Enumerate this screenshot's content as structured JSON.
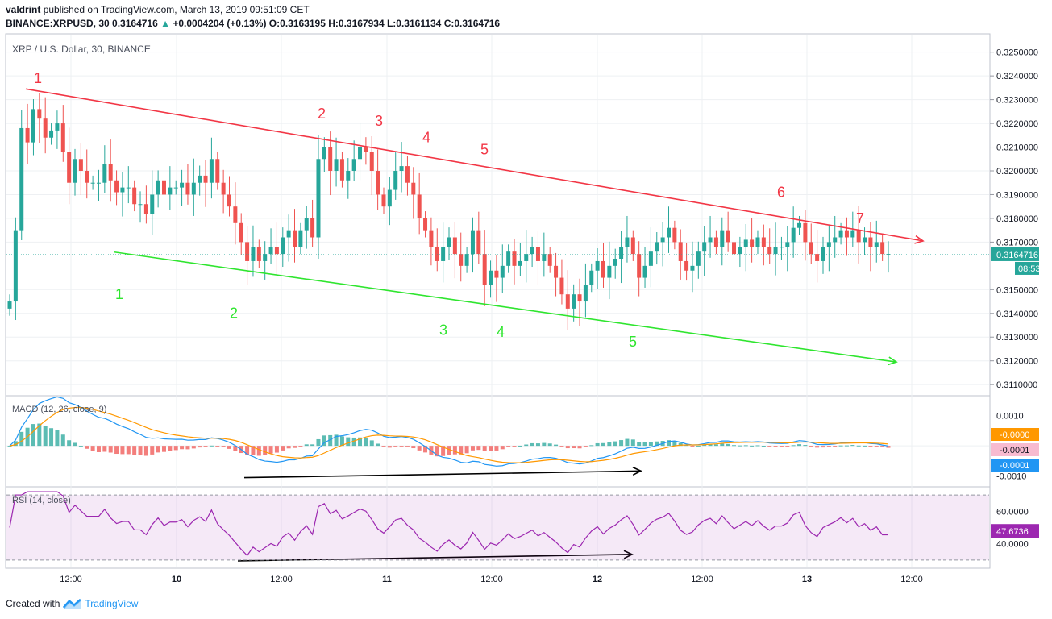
{
  "header": {
    "publisher": "valdrint",
    "published_text": "published on TradingView.com, March 13, 2019 09:51:09 CET",
    "symbol": "BINANCE:XRPUSD, 30",
    "last": "0.3164716",
    "change": "+0.0004204 (+0.13%)",
    "o_label": "O:",
    "o": "0.3163195",
    "h_label": "H:",
    "h": "0.3167934",
    "l_label": "L:",
    "l": "0.3161134",
    "c_label": "C:",
    "c": "0.3164716"
  },
  "footer": {
    "created_with": "Created with",
    "brand": "TradingView"
  },
  "colors": {
    "up": "#26a69a",
    "down": "#ef5350",
    "resistance": "#f23645",
    "support": "#2fe52f",
    "macd": "#2196f3",
    "signal": "#ff9800",
    "rsi": "#9c27b0"
  },
  "chart_data": {
    "type": "candlestick",
    "title": "XRP / U.S. Dollar, 30, BINANCE",
    "price_axis": {
      "ticks": [
        "0.3250000",
        "0.3240000",
        "0.3230000",
        "0.3220000",
        "0.3210000",
        "0.3200000",
        "0.3190000",
        "0.3180000",
        "0.3170000",
        "0.3150000",
        "0.3140000",
        "0.3130000",
        "0.3120000",
        "0.3110000"
      ],
      "last_price_label": "0.3164716",
      "countdown_label": "08:53",
      "ylim": [
        0.3107,
        0.3256
      ]
    },
    "time_axis": {
      "ticks": [
        "12:00",
        "10",
        "12:00",
        "11",
        "12:00",
        "12",
        "12:00",
        "13",
        "12:00"
      ]
    },
    "close_series": [
      0.3145,
      0.3175,
      0.3218,
      0.3212,
      0.3226,
      0.3222,
      0.3214,
      0.3217,
      0.322,
      0.3208,
      0.3195,
      0.3205,
      0.32,
      0.3195,
      0.3195,
      0.3195,
      0.3203,
      0.3196,
      0.3191,
      0.3193,
      0.3193,
      0.3186,
      0.3186,
      0.3182,
      0.319,
      0.3196,
      0.319,
      0.3193,
      0.3193,
      0.3195,
      0.319,
      0.3195,
      0.3198,
      0.3195,
      0.3205,
      0.3195,
      0.319,
      0.3185,
      0.3178,
      0.317,
      0.3162,
      0.3168,
      0.3162,
      0.3165,
      0.3168,
      0.3165,
      0.3172,
      0.3175,
      0.3168,
      0.3175,
      0.318,
      0.3172,
      0.3205,
      0.321,
      0.32,
      0.3205,
      0.3196,
      0.32,
      0.3205,
      0.321,
      0.3208,
      0.32,
      0.319,
      0.3185,
      0.3192,
      0.32,
      0.3202,
      0.3195,
      0.319,
      0.318,
      0.3175,
      0.3168,
      0.3162,
      0.3168,
      0.3172,
      0.3165,
      0.316,
      0.3165,
      0.3175,
      0.3165,
      0.3152,
      0.3158,
      0.3155,
      0.316,
      0.3166,
      0.316,
      0.3162,
      0.3165,
      0.3168,
      0.3162,
      0.3165,
      0.316,
      0.3155,
      0.3148,
      0.3142,
      0.3148,
      0.3145,
      0.3152,
      0.3158,
      0.3162,
      0.3155,
      0.316,
      0.3163,
      0.3168,
      0.3172,
      0.3165,
      0.3155,
      0.316,
      0.3166,
      0.317,
      0.3172,
      0.3176,
      0.317,
      0.3162,
      0.3158,
      0.316,
      0.3166,
      0.317,
      0.3172,
      0.3168,
      0.3175,
      0.317,
      0.3165,
      0.3168,
      0.3171,
      0.3168,
      0.3172,
      0.3168,
      0.3165,
      0.3168,
      0.3168,
      0.317,
      0.3176,
      0.3178,
      0.317,
      0.3165,
      0.3162,
      0.3168,
      0.317,
      0.3172,
      0.3175,
      0.3172,
      0.3175,
      0.317,
      0.3172,
      0.3168,
      0.317,
      0.3165,
      0.3165
    ],
    "resistance_line": {
      "start": {
        "time": 32,
        "price": 0.32345
      },
      "end": {
        "time": 1145,
        "price": 0.31705
      }
    },
    "support_line": {
      "start": {
        "time": 142,
        "price": 0.31658
      },
      "end": {
        "time": 1112,
        "price": 0.31195
      }
    },
    "resistance_touch_labels": [
      {
        "text": "1",
        "time": 47,
        "price": 0.3237
      },
      {
        "text": "2",
        "time": 399,
        "price": 0.3222
      },
      {
        "text": "3",
        "time": 470,
        "price": 0.3219
      },
      {
        "text": "4",
        "time": 529,
        "price": 0.3212
      },
      {
        "text": "5",
        "time": 601,
        "price": 0.3207
      },
      {
        "text": "6",
        "time": 969,
        "price": 0.3189
      },
      {
        "text": "7",
        "time": 1067,
        "price": 0.3178
      }
    ],
    "support_touch_labels": [
      {
        "text": "1",
        "time": 148,
        "price": 0.3146
      },
      {
        "text": "2",
        "time": 290,
        "price": 0.3138
      },
      {
        "text": "3",
        "time": 550,
        "price": 0.3131
      },
      {
        "text": "4",
        "time": 621,
        "price": 0.313
      },
      {
        "text": "5",
        "time": 785,
        "price": 0.3126
      }
    ],
    "macd": {
      "title": "MACD (12, 26, close, 9)",
      "ticks": [
        "0.0010",
        "-0.0010"
      ],
      "ylim": [
        -0.0013,
        0.0016
      ],
      "value_labels": [
        "-0.0000",
        "-0.0001",
        "-0.0001"
      ],
      "divergence_arrow": {
        "start": {
          "time": 303,
          "value": -0.00105
        },
        "end": {
          "time": 795,
          "value": -0.00083
        }
      }
    },
    "rsi": {
      "title": "RSI (14, close)",
      "ticks": [
        "60.0000",
        "40.0000"
      ],
      "ylim": [
        26,
        74
      ],
      "band": [
        30,
        70
      ],
      "value_label": "47.6736",
      "divergence_arrow": {
        "start": {
          "time": 295,
          "value": 29.5
        },
        "end": {
          "time": 784,
          "value": 33.5
        }
      }
    }
  }
}
